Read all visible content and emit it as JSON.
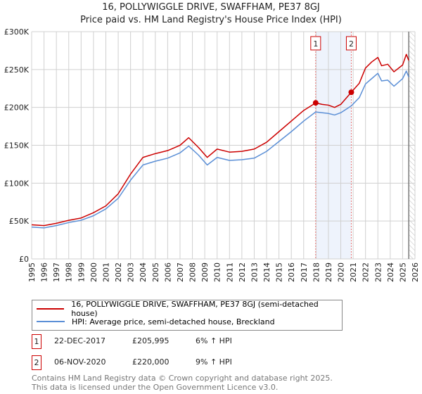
{
  "chart_data": {
    "type": "line",
    "title": "16, POLLYWIGGLE DRIVE, SWAFFHAM, PE37 8GJ",
    "subtitle": "Price paid vs. HM Land Registry's House Price Index (HPI)",
    "xlim": [
      1995,
      2026
    ],
    "ylim": [
      0,
      300000
    ],
    "y_ticks": [
      {
        "v": 0,
        "label": "£0"
      },
      {
        "v": 50000,
        "label": "£50K"
      },
      {
        "v": 100000,
        "label": "£100K"
      },
      {
        "v": 150000,
        "label": "£150K"
      },
      {
        "v": 200000,
        "label": "£200K"
      },
      {
        "v": 250000,
        "label": "£250K"
      },
      {
        "v": 300000,
        "label": "£300K"
      }
    ],
    "x_ticks": [
      "1995",
      "1996",
      "1997",
      "1998",
      "1999",
      "2000",
      "2001",
      "2002",
      "2003",
      "2004",
      "2005",
      "2006",
      "2007",
      "2008",
      "2009",
      "2010",
      "2011",
      "2012",
      "2013",
      "2014",
      "2015",
      "2016",
      "2017",
      "2018",
      "2019",
      "2020",
      "2021",
      "2022",
      "2023",
      "2024",
      "2025",
      "2026"
    ],
    "grid": true,
    "series": [
      {
        "name": "16, POLLYWIGGLE DRIVE, SWAFFHAM, PE37 8GJ (semi-detached house)",
        "color": "#cc0000",
        "x": [
          1995,
          1996,
          1997,
          1998,
          1999,
          2000,
          2001,
          2002,
          2003,
          2004,
          2005,
          2006,
          2007,
          2007.7,
          2008.5,
          2009.2,
          2010,
          2011,
          2012,
          2013,
          2014,
          2015,
          2016,
          2017,
          2017.97,
          2018.5,
          2019,
          2019.5,
          2020,
          2020.85,
          2021.5,
          2022,
          2022.5,
          2023,
          2023.3,
          2023.8,
          2024.3,
          2025,
          2025.3,
          2025.5
        ],
        "y": [
          45000,
          44000,
          47000,
          51000,
          54000,
          61000,
          70000,
          86000,
          112000,
          134000,
          139000,
          143000,
          150000,
          160000,
          147000,
          134000,
          145000,
          141000,
          142000,
          145000,
          154000,
          168000,
          182000,
          196000,
          205995,
          204000,
          203000,
          200000,
          204000,
          220000,
          232000,
          252000,
          260000,
          266000,
          255000,
          257000,
          247000,
          256000,
          270000,
          262000
        ]
      },
      {
        "name": "HPI: Average price, semi-detached house, Breckland",
        "color": "#5b8fd6",
        "x": [
          1995,
          1996,
          1997,
          1998,
          1999,
          2000,
          2001,
          2002,
          2003,
          2004,
          2005,
          2006,
          2007,
          2007.7,
          2008.5,
          2009.2,
          2010,
          2011,
          2012,
          2013,
          2014,
          2015,
          2016,
          2017,
          2017.97,
          2018.5,
          2019,
          2019.5,
          2020,
          2020.85,
          2021.5,
          2022,
          2022.5,
          2023,
          2023.3,
          2023.8,
          2024.3,
          2025,
          2025.3,
          2025.5
        ],
        "y": [
          42000,
          41000,
          44000,
          48000,
          51000,
          57000,
          66000,
          80000,
          104000,
          124000,
          129000,
          133000,
          140000,
          149000,
          137000,
          124000,
          134000,
          130000,
          131000,
          133000,
          142000,
          155000,
          168000,
          182000,
          194000,
          193000,
          192000,
          190000,
          193000,
          202000,
          213000,
          231000,
          238000,
          245000,
          235000,
          236000,
          228000,
          238000,
          248000,
          240000
        ]
      }
    ],
    "sales": [
      {
        "id": "1",
        "x": 2017.97,
        "y": 205995
      },
      {
        "id": "2",
        "x": 2020.85,
        "y": 220000
      }
    ],
    "shaded_range": [
      2017.97,
      2020.85
    ],
    "hatched_from": 2025.5
  },
  "legend": {
    "item1": "16, POLLYWIGGLE DRIVE, SWAFFHAM, PE37 8GJ (semi-detached house)",
    "item2": "HPI: Average price, semi-detached house, Breckland"
  },
  "transactions": [
    {
      "id": "1",
      "date": "22-DEC-2017",
      "price": "£205,995",
      "hpi": "6% ↑ HPI"
    },
    {
      "id": "2",
      "date": "06-NOV-2020",
      "price": "£220,000",
      "hpi": "9% ↑ HPI"
    }
  ],
  "footer": {
    "line1": "Contains HM Land Registry data © Crown copyright and database right 2025.",
    "line2": "This data is licensed under the Open Government Licence v3.0."
  }
}
